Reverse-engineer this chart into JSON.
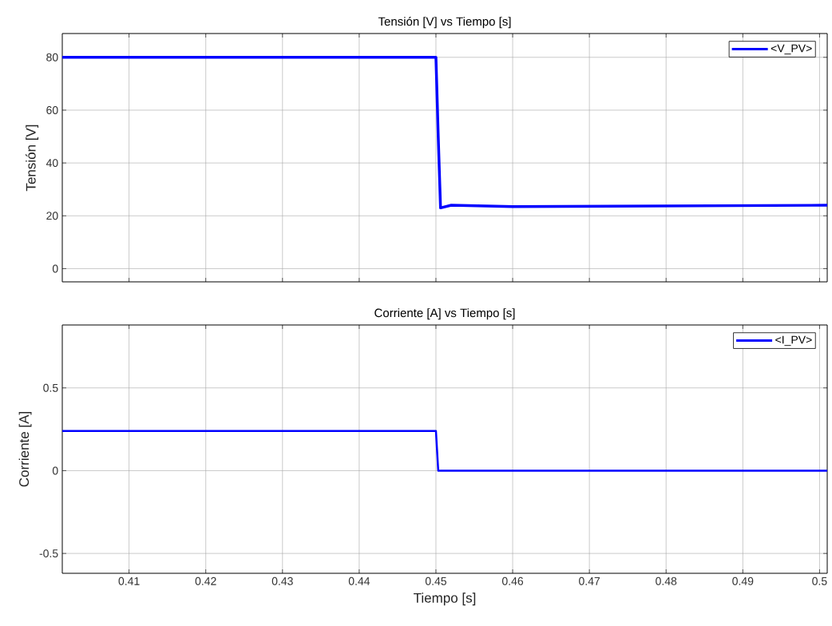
{
  "chart_data": [
    {
      "type": "line",
      "title": "Tensión [V] vs Tiempo [s]",
      "ylabel": "Tensión [V]",
      "x": [
        0.4013,
        0.45,
        0.4503,
        0.4506,
        0.452,
        0.46,
        0.501
      ],
      "series": [
        {
          "name": "<V_PV>",
          "color": "#0000ff",
          "values": [
            80,
            80,
            50,
            23,
            24,
            23.5,
            24
          ]
        }
      ],
      "xlim": [
        0.4013,
        0.501
      ],
      "ylim": [
        -5,
        89
      ],
      "xticks": [
        0.41,
        0.42,
        0.43,
        0.44,
        0.45,
        0.46,
        0.47,
        0.48,
        0.49,
        0.5
      ],
      "yticks": [
        0,
        20,
        40,
        60,
        80
      ],
      "grid": true,
      "legend": "top right",
      "tick_labels": "y"
    },
    {
      "type": "line",
      "title": "Corriente [A] vs Tiempo [s]",
      "xlabel": "Tiempo [s]",
      "ylabel": "Corriente [A]",
      "x": [
        0.4013,
        0.45,
        0.4503,
        0.501
      ],
      "series": [
        {
          "name": "<I_PV>",
          "color": "#0000ff",
          "values": [
            0.24,
            0.24,
            0,
            0
          ]
        }
      ],
      "xlim": [
        0.4013,
        0.501
      ],
      "ylim": [
        -0.62,
        0.88
      ],
      "xticks": [
        0.41,
        0.42,
        0.43,
        0.44,
        0.45,
        0.46,
        0.47,
        0.48,
        0.49,
        0.5
      ],
      "yticks": [
        -0.5,
        0,
        0.5
      ],
      "grid": true,
      "legend": "top right"
    }
  ]
}
